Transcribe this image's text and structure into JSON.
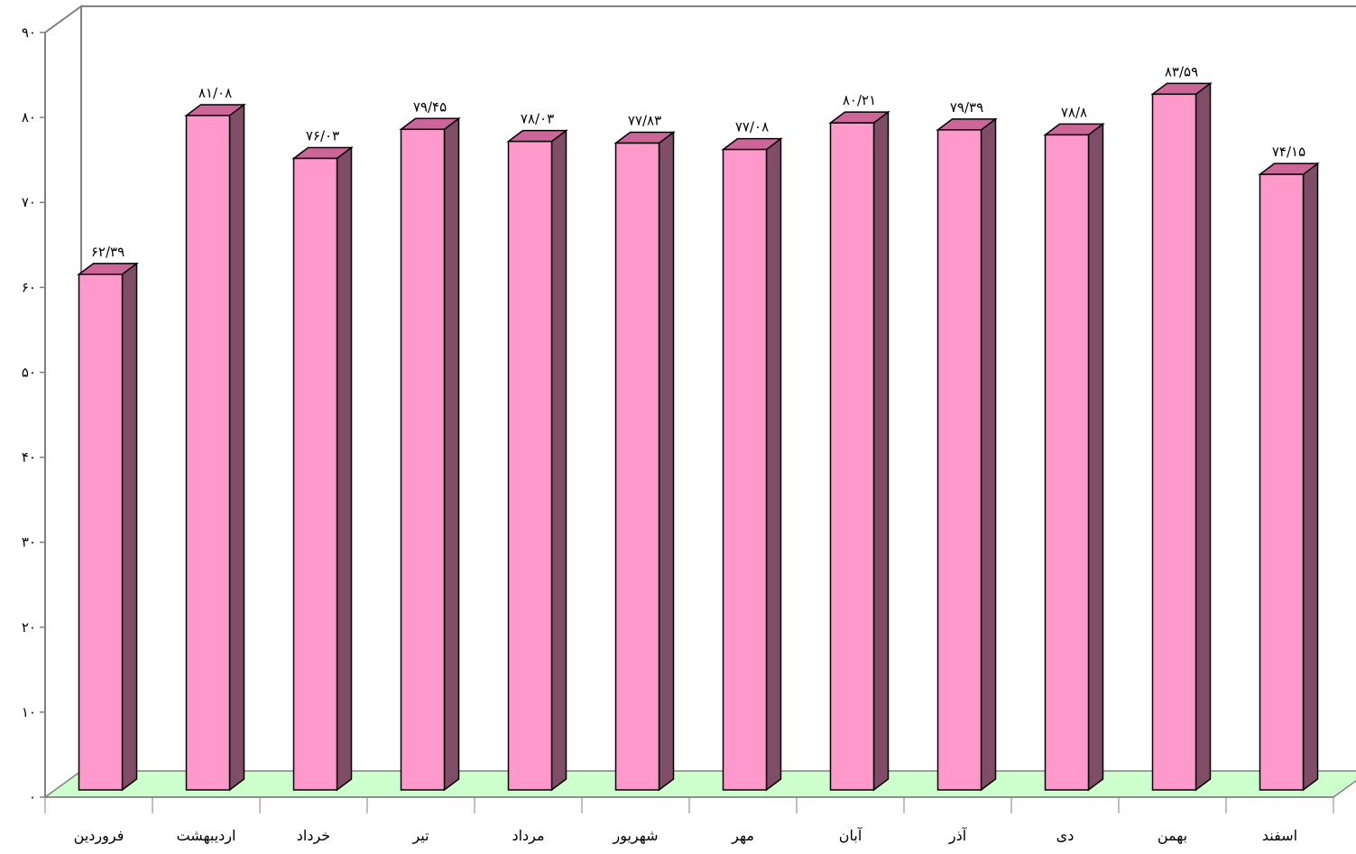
{
  "chart_data": {
    "type": "bar",
    "title": "",
    "xlabel": "",
    "ylabel": "",
    "ylim": [
      0,
      90
    ],
    "yticks": [
      0,
      10,
      20,
      30,
      40,
      50,
      60,
      70,
      80,
      90
    ],
    "ytick_labels": [
      "۰",
      "۱۰",
      "۲۰",
      "۳۰",
      "۴۰",
      "۵۰",
      "۶۰",
      "۷۰",
      "۸۰",
      "۹۰"
    ],
    "categories": [
      "فروردین",
      "اردیبهشت",
      "خرداد",
      "تیر",
      "مرداد",
      "شهریور",
      "مهر",
      "آبان",
      "آذر",
      "دی",
      "بهمن",
      "اسفند"
    ],
    "values": [
      62.39,
      81.08,
      76.03,
      79.45,
      78.03,
      77.83,
      77.08,
      80.21,
      79.39,
      78.8,
      83.59,
      74.15
    ],
    "data_labels": [
      "۶۲/۳۹",
      "۸۱/۰۸",
      "۷۶/۰۳",
      "۷۹/۴۵",
      "۷۸/۰۳",
      "۷۷/۸۳",
      "۷۷/۰۸",
      "۸۰/۲۱",
      "۷۹/۳۹",
      "۷۸/۸",
      "۸۳/۵۹",
      "۷۴/۱۵"
    ],
    "legend": "none",
    "grid": false,
    "style": "3d-column",
    "colors": {
      "bar_front": "#ff99cc",
      "bar_side": "#7f4d66",
      "bar_top": "#cc6699",
      "floor": "#ccffcc",
      "wall": "#ffffff",
      "axis": "#808080",
      "outline": "#000000"
    }
  }
}
